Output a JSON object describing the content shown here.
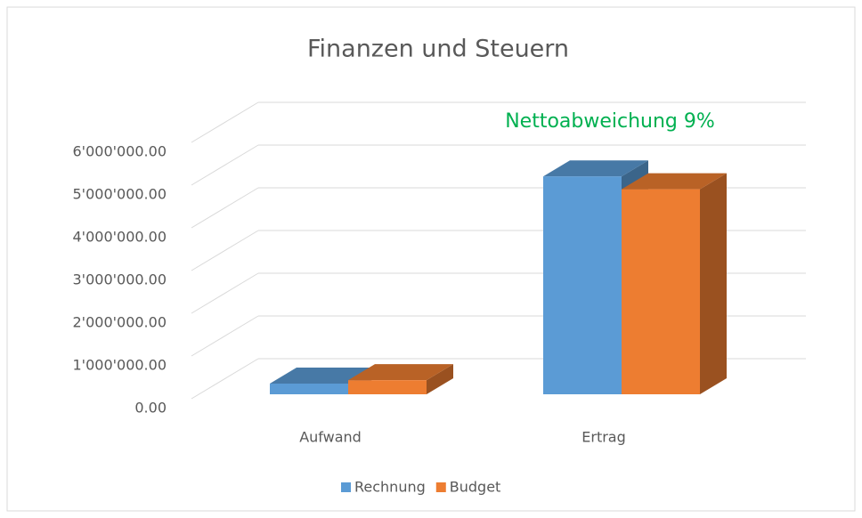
{
  "chart_data": {
    "type": "bar3d",
    "title": "Finanzen und Steuern",
    "annotation": "Nettoabweichung 9%",
    "categories": [
      "Aufwand",
      "Ertrag"
    ],
    "series": [
      {
        "name": "Rechnung",
        "color": "#5b9bd5",
        "values": [
          250000,
          5100000
        ]
      },
      {
        "name": "Budget",
        "color": "#ed7d31",
        "values": [
          330000,
          4800000
        ]
      }
    ],
    "ylim": [
      0,
      6000000
    ],
    "yticks": [
      {
        "value": 0,
        "label": "0.00"
      },
      {
        "value": 1000000,
        "label": "1'000'000.00"
      },
      {
        "value": 2000000,
        "label": "2'000'000.00"
      },
      {
        "value": 3000000,
        "label": "3'000'000.00"
      },
      {
        "value": 4000000,
        "label": "4'000'000.00"
      },
      {
        "value": 5000000,
        "label": "5'000'000.00"
      },
      {
        "value": 6000000,
        "label": "6'000'000.00"
      }
    ],
    "grid": true,
    "legend": "bottom"
  }
}
